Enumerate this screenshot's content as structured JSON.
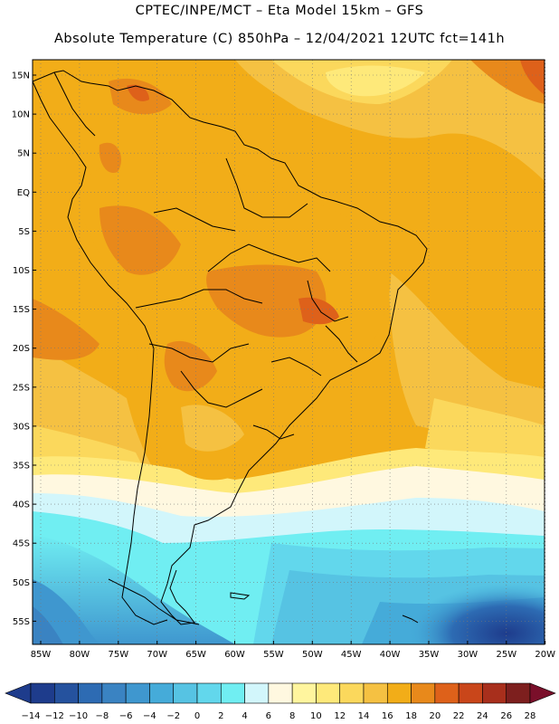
{
  "header": {
    "line1": "CPTEC/INPE/MCT –  Eta Model 15km – GFS",
    "line2": "Absolute Temperature (C) 850hPa – 12/04/2021 12UTC fct=141h"
  },
  "axes": {
    "lat_labels": [
      "15N",
      "10N",
      "5N",
      "EQ",
      "5S",
      "10S",
      "15S",
      "20S",
      "25S",
      "30S",
      "35S",
      "40S",
      "45S",
      "50S",
      "55S"
    ],
    "lon_labels": [
      "85W",
      "80W",
      "75W",
      "70W",
      "65W",
      "60W",
      "55W",
      "50W",
      "45W",
      "40W",
      "35W",
      "30W",
      "25W",
      "20W"
    ]
  },
  "colorbar": {
    "labels": [
      "-14",
      "-12",
      "-10",
      "-8",
      "-6",
      "-4",
      "-2",
      "0",
      "2",
      "4",
      "6",
      "8",
      "10",
      "12",
      "14",
      "16",
      "18",
      "20",
      "22",
      "24",
      "26",
      "28"
    ],
    "colors": [
      "#1e3c8c",
      "#25529e",
      "#2d6bb3",
      "#3a83c2",
      "#3f97cf",
      "#45abd9",
      "#56c3e3",
      "#62d7ec",
      "#70eef2",
      "#d2f6fb",
      "#fff8e0",
      "#fff59e",
      "#fee97a",
      "#fbd85c",
      "#f5c142",
      "#f2ad18",
      "#e8891b",
      "#de611a",
      "#c9461a",
      "#a82f1c",
      "#7d1f1e"
    ]
  }
}
